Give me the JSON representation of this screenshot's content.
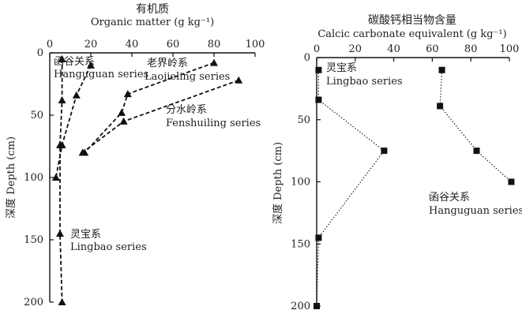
{
  "chart_data": [
    {
      "type": "line",
      "title_cn": "有机质",
      "title": "Organic matter (g kg⁻¹)",
      "ylabel": "深度 Depth (cm)",
      "xlim": [
        0,
        100
      ],
      "ylim": [
        0,
        200
      ],
      "y_inverted": true,
      "x_axis_position": "top",
      "x_ticks": [
        0,
        20,
        40,
        60,
        80,
        100
      ],
      "y_ticks": [
        0,
        50,
        100,
        150,
        200
      ],
      "marker": "triangle",
      "line_style": "dashed",
      "series": [
        {
          "name_cn": "函谷关系",
          "name": "Hanguguan series",
          "points": [
            {
              "x": 20,
              "y": 10
            },
            {
              "x": 13,
              "y": 34
            },
            {
              "x": 6,
              "y": 74
            },
            {
              "x": 3,
              "y": 100
            }
          ]
        },
        {
          "name_cn": "老界岭系",
          "name": "Laojieling series",
          "points": [
            {
              "x": 80,
              "y": 8
            },
            {
              "x": 38,
              "y": 33
            },
            {
              "x": 35,
              "y": 48
            },
            {
              "x": 17,
              "y": 80
            }
          ]
        },
        {
          "name_cn": "分水岭系",
          "name": "Fenshuiling series",
          "points": [
            {
              "x": 92,
              "y": 22
            },
            {
              "x": 36,
              "y": 55
            },
            {
              "x": 16,
              "y": 80
            }
          ]
        },
        {
          "name_cn": "灵宝系",
          "name": "Lingbao series",
          "points": [
            {
              "x": 6,
              "y": 5
            },
            {
              "x": 6,
              "y": 38
            },
            {
              "x": 5,
              "y": 74
            },
            {
              "x": 5,
              "y": 145
            },
            {
              "x": 6,
              "y": 200
            }
          ]
        }
      ]
    },
    {
      "type": "line",
      "title_cn": "碳酸钙相当物含量",
      "title": "Calcic carbonate equivalent (g kg⁻¹)",
      "ylabel": "深度 Depth (cm)",
      "xlim": [
        0,
        100
      ],
      "ylim": [
        0,
        200
      ],
      "y_inverted": true,
      "x_axis_position": "top",
      "x_ticks": [
        0,
        20,
        40,
        60,
        80,
        100
      ],
      "y_ticks": [
        0,
        50,
        100,
        150,
        200
      ],
      "marker": "square",
      "line_style": "dotted",
      "series": [
        {
          "name_cn": "灵宝系",
          "name": "Lingbao series",
          "points": [
            {
              "x": 1,
              "y": 10
            },
            {
              "x": 1,
              "y": 34
            },
            {
              "x": 35,
              "y": 75
            },
            {
              "x": 1,
              "y": 145
            },
            {
              "x": 0,
              "y": 200
            }
          ]
        },
        {
          "name_cn": "函谷关系",
          "name": "Hanguguan series",
          "points": [
            {
              "x": 65,
              "y": 10
            },
            {
              "x": 64,
              "y": 39
            },
            {
              "x": 83,
              "y": 75
            },
            {
              "x": 101,
              "y": 100
            }
          ]
        }
      ]
    }
  ]
}
